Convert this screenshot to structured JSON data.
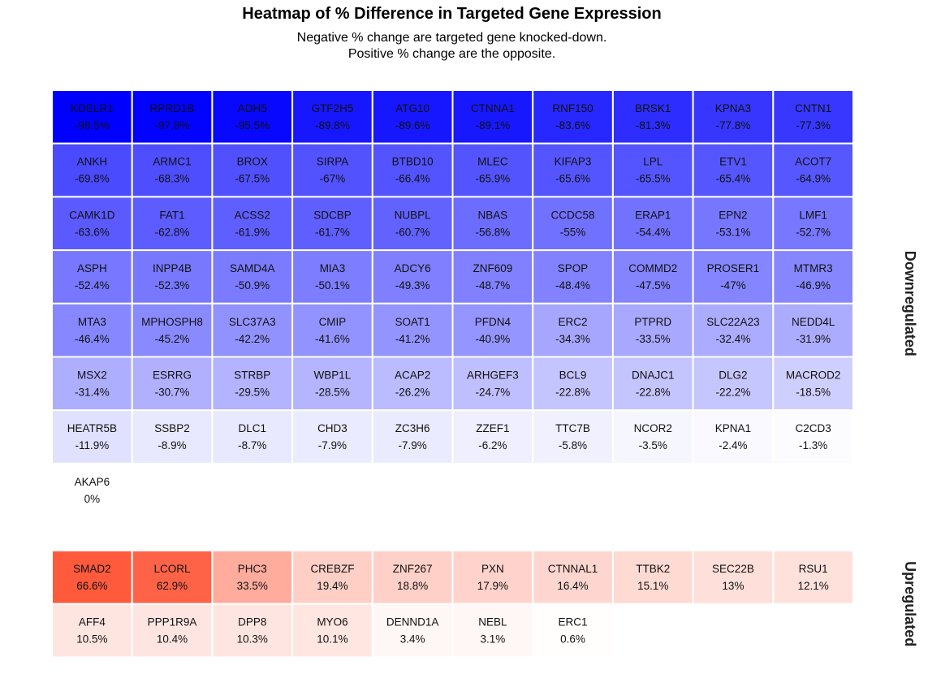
{
  "chart_data": {
    "type": "heatmap",
    "title": "Heatmap of % Difference in Targeted Gene Expression",
    "subtitle": [
      "Negative % change are targeted gene knocked-down.",
      "Positive % change are the opposite."
    ],
    "columns": 10,
    "color_scale": {
      "min": -98.5,
      "max": 66.6,
      "low_color": "#0000ff",
      "mid_color": "#ffffff",
      "high_color": "#ff5a3c",
      "midpoint": 0
    },
    "facets": [
      {
        "label": "Downregulated",
        "cells": [
          {
            "gene": "KDELR1",
            "value": -98.5,
            "label": "-98.5%"
          },
          {
            "gene": "RPRD1B",
            "value": -97.8,
            "label": "-97.8%"
          },
          {
            "gene": "ADH5",
            "value": -95.5,
            "label": "-95.5%"
          },
          {
            "gene": "GTF2H5",
            "value": -89.8,
            "label": "-89.8%"
          },
          {
            "gene": "ATG10",
            "value": -89.6,
            "label": "-89.6%"
          },
          {
            "gene": "CTNNA1",
            "value": -89.1,
            "label": "-89.1%"
          },
          {
            "gene": "RNF150",
            "value": -83.6,
            "label": "-83.6%"
          },
          {
            "gene": "BRSK1",
            "value": -81.3,
            "label": "-81.3%"
          },
          {
            "gene": "KPNA3",
            "value": -77.8,
            "label": "-77.8%"
          },
          {
            "gene": "CNTN1",
            "value": -77.3,
            "label": "-77.3%"
          },
          {
            "gene": "ANKH",
            "value": -69.8,
            "label": "-69.8%"
          },
          {
            "gene": "ARMC1",
            "value": -68.3,
            "label": "-68.3%"
          },
          {
            "gene": "BROX",
            "value": -67.5,
            "label": "-67.5%"
          },
          {
            "gene": "SIRPA",
            "value": -67,
            "label": "-67%"
          },
          {
            "gene": "BTBD10",
            "value": -66.4,
            "label": "-66.4%"
          },
          {
            "gene": "MLEC",
            "value": -65.9,
            "label": "-65.9%"
          },
          {
            "gene": "KIFAP3",
            "value": -65.6,
            "label": "-65.6%"
          },
          {
            "gene": "LPL",
            "value": -65.5,
            "label": "-65.5%"
          },
          {
            "gene": "ETV1",
            "value": -65.4,
            "label": "-65.4%"
          },
          {
            "gene": "ACOT7",
            "value": -64.9,
            "label": "-64.9%"
          },
          {
            "gene": "CAMK1D",
            "value": -63.6,
            "label": "-63.6%"
          },
          {
            "gene": "FAT1",
            "value": -62.8,
            "label": "-62.8%"
          },
          {
            "gene": "ACSS2",
            "value": -61.9,
            "label": "-61.9%"
          },
          {
            "gene": "SDCBP",
            "value": -61.7,
            "label": "-61.7%"
          },
          {
            "gene": "NUBPL",
            "value": -60.7,
            "label": "-60.7%"
          },
          {
            "gene": "NBAS",
            "value": -56.8,
            "label": "-56.8%"
          },
          {
            "gene": "CCDC58",
            "value": -55,
            "label": "-55%"
          },
          {
            "gene": "ERAP1",
            "value": -54.4,
            "label": "-54.4%"
          },
          {
            "gene": "EPN2",
            "value": -53.1,
            "label": "-53.1%"
          },
          {
            "gene": "LMF1",
            "value": -52.7,
            "label": "-52.7%"
          },
          {
            "gene": "ASPH",
            "value": -52.4,
            "label": "-52.4%"
          },
          {
            "gene": "INPP4B",
            "value": -52.3,
            "label": "-52.3%"
          },
          {
            "gene": "SAMD4A",
            "value": -50.9,
            "label": "-50.9%"
          },
          {
            "gene": "MIA3",
            "value": -50.1,
            "label": "-50.1%"
          },
          {
            "gene": "ADCY6",
            "value": -49.3,
            "label": "-49.3%"
          },
          {
            "gene": "ZNF609",
            "value": -48.7,
            "label": "-48.7%"
          },
          {
            "gene": "SPOP",
            "value": -48.4,
            "label": "-48.4%"
          },
          {
            "gene": "COMMD2",
            "value": -47.5,
            "label": "-47.5%"
          },
          {
            "gene": "PROSER1",
            "value": -47,
            "label": "-47%"
          },
          {
            "gene": "MTMR3",
            "value": -46.9,
            "label": "-46.9%"
          },
          {
            "gene": "MTA3",
            "value": -46.4,
            "label": "-46.4%"
          },
          {
            "gene": "MPHOSPH8",
            "value": -45.2,
            "label": "-45.2%"
          },
          {
            "gene": "SLC37A3",
            "value": -42.2,
            "label": "-42.2%"
          },
          {
            "gene": "CMIP",
            "value": -41.6,
            "label": "-41.6%"
          },
          {
            "gene": "SOAT1",
            "value": -41.2,
            "label": "-41.2%"
          },
          {
            "gene": "PFDN4",
            "value": -40.9,
            "label": "-40.9%"
          },
          {
            "gene": "ERC2",
            "value": -34.3,
            "label": "-34.3%"
          },
          {
            "gene": "PTPRD",
            "value": -33.5,
            "label": "-33.5%"
          },
          {
            "gene": "SLC22A23",
            "value": -32.4,
            "label": "-32.4%"
          },
          {
            "gene": "NEDD4L",
            "value": -31.9,
            "label": "-31.9%"
          },
          {
            "gene": "MSX2",
            "value": -31.4,
            "label": "-31.4%"
          },
          {
            "gene": "ESRRG",
            "value": -30.7,
            "label": "-30.7%"
          },
          {
            "gene": "STRBP",
            "value": -29.5,
            "label": "-29.5%"
          },
          {
            "gene": "WBP1L",
            "value": -28.5,
            "label": "-28.5%"
          },
          {
            "gene": "ACAP2",
            "value": -26.2,
            "label": "-26.2%"
          },
          {
            "gene": "ARHGEF3",
            "value": -24.7,
            "label": "-24.7%"
          },
          {
            "gene": "BCL9",
            "value": -22.8,
            "label": "-22.8%"
          },
          {
            "gene": "DNAJC1",
            "value": -22.8,
            "label": "-22.8%"
          },
          {
            "gene": "DLG2",
            "value": -22.2,
            "label": "-22.2%"
          },
          {
            "gene": "MACROD2",
            "value": -18.5,
            "label": "-18.5%"
          },
          {
            "gene": "HEATR5B",
            "value": -11.9,
            "label": "-11.9%"
          },
          {
            "gene": "SSBP2",
            "value": -8.9,
            "label": "-8.9%"
          },
          {
            "gene": "DLC1",
            "value": -8.7,
            "label": "-8.7%"
          },
          {
            "gene": "CHD3",
            "value": -7.9,
            "label": "-7.9%"
          },
          {
            "gene": "ZC3H6",
            "value": -7.9,
            "label": "-7.9%"
          },
          {
            "gene": "ZZEF1",
            "value": -6.2,
            "label": "-6.2%"
          },
          {
            "gene": "TTC7B",
            "value": -5.8,
            "label": "-5.8%"
          },
          {
            "gene": "NCOR2",
            "value": -3.5,
            "label": "-3.5%"
          },
          {
            "gene": "KPNA1",
            "value": -2.4,
            "label": "-2.4%"
          },
          {
            "gene": "C2CD3",
            "value": -1.3,
            "label": "-1.3%"
          },
          {
            "gene": "AKAP6",
            "value": 0,
            "label": "0%"
          }
        ]
      },
      {
        "label": "Upregulated",
        "cells": [
          {
            "gene": "SMAD2",
            "value": 66.6,
            "label": "66.6%"
          },
          {
            "gene": "LCORL",
            "value": 62.9,
            "label": "62.9%"
          },
          {
            "gene": "PHC3",
            "value": 33.5,
            "label": "33.5%"
          },
          {
            "gene": "CREBZF",
            "value": 19.4,
            "label": "19.4%"
          },
          {
            "gene": "ZNF267",
            "value": 18.8,
            "label": "18.8%"
          },
          {
            "gene": "PXN",
            "value": 17.9,
            "label": "17.9%"
          },
          {
            "gene": "CTNNAL1",
            "value": 16.4,
            "label": "16.4%"
          },
          {
            "gene": "TTBK2",
            "value": 15.1,
            "label": "15.1%"
          },
          {
            "gene": "SEC22B",
            "value": 13,
            "label": "13%"
          },
          {
            "gene": "RSU1",
            "value": 12.1,
            "label": "12.1%"
          },
          {
            "gene": "AFF4",
            "value": 10.5,
            "label": "10.5%"
          },
          {
            "gene": "PPP1R9A",
            "value": 10.4,
            "label": "10.4%"
          },
          {
            "gene": "DPP8",
            "value": 10.3,
            "label": "10.3%"
          },
          {
            "gene": "MYO6",
            "value": 10.1,
            "label": "10.1%"
          },
          {
            "gene": "DENND1A",
            "value": 3.4,
            "label": "3.4%"
          },
          {
            "gene": "NEBL",
            "value": 3.1,
            "label": "3.1%"
          },
          {
            "gene": "ERC1",
            "value": 0.6,
            "label": "0.6%"
          }
        ]
      }
    ]
  }
}
